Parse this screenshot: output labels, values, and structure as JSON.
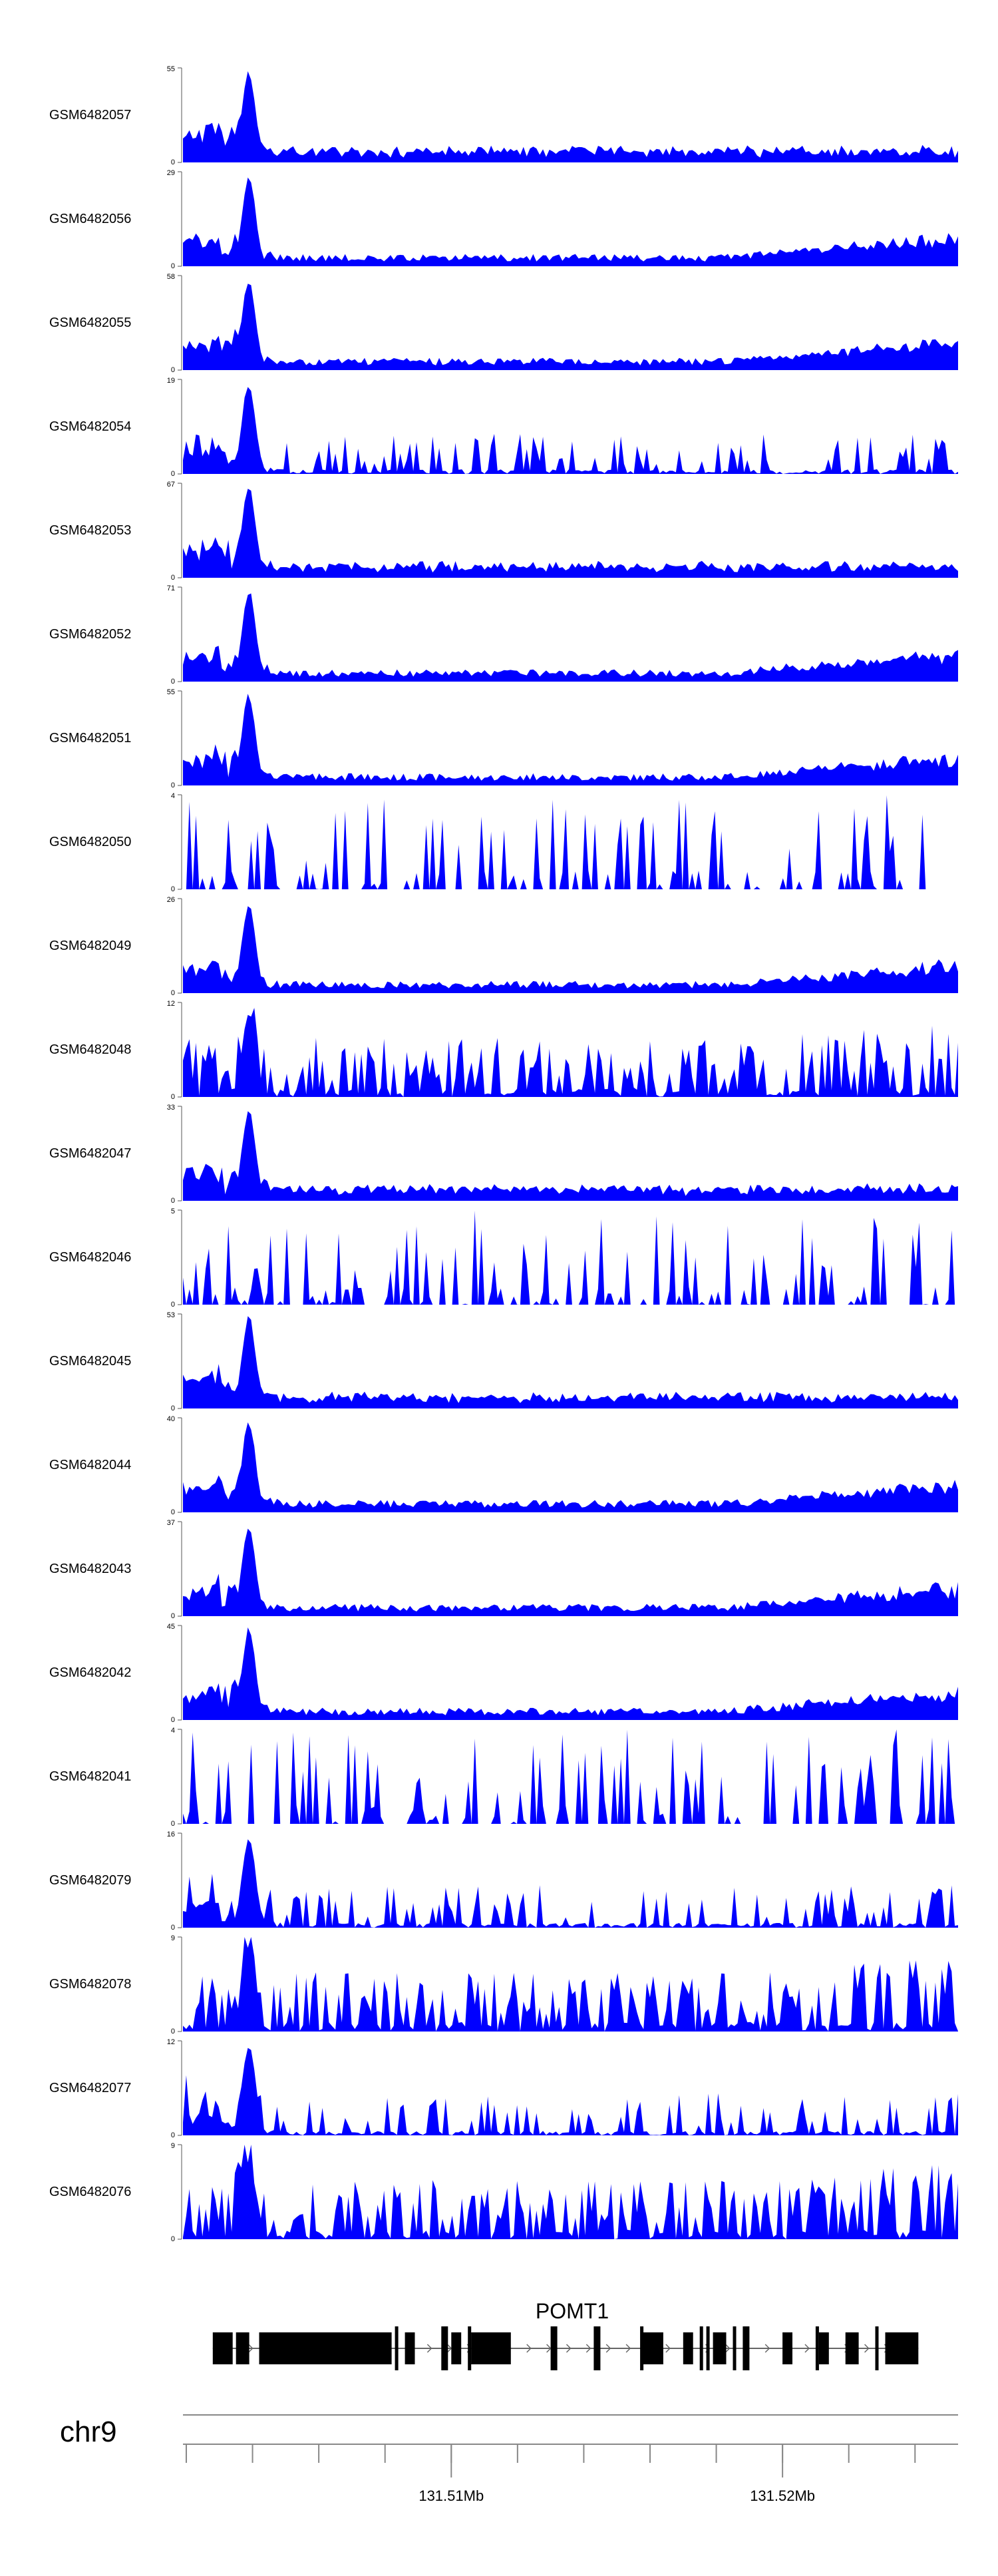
{
  "chart_data": {
    "type": "area",
    "genome": "chr9",
    "xlim": [
      131.5019,
      131.5253
    ],
    "x_unit": "Mb",
    "x_ticks": [
      131.502,
      131.504,
      131.506,
      131.508,
      131.51,
      131.512,
      131.514,
      131.516,
      131.518,
      131.52,
      131.522,
      131.524
    ],
    "x_tick_labels": [
      {
        "value": 131.51,
        "label": "131.51Mb"
      },
      {
        "value": 131.52,
        "label": "131.52Mb"
      }
    ],
    "fill_color": "#0000ff",
    "tracks": [
      {
        "name": "GSM6482057",
        "ymax": 55,
        "ymax_label": "55",
        "ymin_label": "0",
        "type": "peak_flat",
        "seed": 11
      },
      {
        "name": "GSM6482056",
        "ymax": 29,
        "ymax_label": "29",
        "ymin_label": "0",
        "type": "peak_rise",
        "seed": 12
      },
      {
        "name": "GSM6482055",
        "ymax": 58,
        "ymax_label": "58",
        "ymin_label": "0",
        "type": "peak_rise",
        "seed": 13
      },
      {
        "name": "GSM6482054",
        "ymax": 19,
        "ymax_label": "19",
        "ymin_label": "0",
        "type": "peak_spiky",
        "seed": 14
      },
      {
        "name": "GSM6482053",
        "ymax": 67,
        "ymax_label": "67",
        "ymin_label": "0",
        "type": "peak_flat",
        "seed": 15
      },
      {
        "name": "GSM6482052",
        "ymax": 71,
        "ymax_label": "71",
        "ymin_label": "0",
        "type": "peak_rise",
        "seed": 16
      },
      {
        "name": "GSM6482051",
        "ymax": 55,
        "ymax_label": "55",
        "ymin_label": "0",
        "type": "peak_rise",
        "seed": 17
      },
      {
        "name": "GSM6482050",
        "ymax": 4,
        "ymax_label": "4",
        "ymin_label": "0",
        "type": "spiky",
        "seed": 18
      },
      {
        "name": "GSM6482049",
        "ymax": 26,
        "ymax_label": "26",
        "ymin_label": "0",
        "type": "peak_rise",
        "seed": 19
      },
      {
        "name": "GSM6482048",
        "ymax": 12,
        "ymax_label": "12",
        "ymin_label": "0",
        "type": "noisy",
        "seed": 20
      },
      {
        "name": "GSM6482047",
        "ymax": 33,
        "ymax_label": "33",
        "ymin_label": "0",
        "type": "peak_flat",
        "seed": 21
      },
      {
        "name": "GSM6482046",
        "ymax": 5,
        "ymax_label": "5",
        "ymin_label": "0",
        "type": "spiky",
        "seed": 22
      },
      {
        "name": "GSM6482045",
        "ymax": 53,
        "ymax_label": "53",
        "ymin_label": "0",
        "type": "peak_flat",
        "seed": 23
      },
      {
        "name": "GSM6482044",
        "ymax": 40,
        "ymax_label": "40",
        "ymin_label": "0",
        "type": "peak_rise",
        "seed": 24
      },
      {
        "name": "GSM6482043",
        "ymax": 37,
        "ymax_label": "37",
        "ymin_label": "0",
        "type": "peak_rise",
        "seed": 25
      },
      {
        "name": "GSM6482042",
        "ymax": 45,
        "ymax_label": "45",
        "ymin_label": "0",
        "type": "peak_rise",
        "seed": 26
      },
      {
        "name": "GSM6482041",
        "ymax": 4,
        "ymax_label": "4",
        "ymin_label": "0",
        "type": "spiky",
        "seed": 27
      },
      {
        "name": "GSM6482079",
        "ymax": 16,
        "ymax_label": "16",
        "ymin_label": "0",
        "type": "peak_spiky",
        "seed": 28
      },
      {
        "name": "GSM6482078",
        "ymax": 9,
        "ymax_label": "9",
        "ymin_label": "0",
        "type": "noisy",
        "seed": 29
      },
      {
        "name": "GSM6482077",
        "ymax": 12,
        "ymax_label": "12",
        "ymin_label": "0",
        "type": "peak_spiky",
        "seed": 30
      },
      {
        "name": "GSM6482076",
        "ymax": 9,
        "ymax_label": "9",
        "ymin_label": "0",
        "type": "noisy",
        "seed": 31
      }
    ],
    "gene": {
      "name": "POMT1",
      "strand": "+",
      "start": 131.5028,
      "end": 131.5241,
      "exons": [
        [
          131.5028,
          131.5034
        ],
        [
          131.5035,
          131.5039
        ],
        [
          131.5042,
          131.5082
        ],
        [
          131.5083,
          131.5084
        ],
        [
          131.5086,
          131.5089
        ],
        [
          131.5097,
          131.5099
        ],
        [
          131.51,
          131.5103
        ],
        [
          131.5105,
          131.5106
        ],
        [
          131.5106,
          131.5118
        ],
        [
          131.513,
          131.5132
        ],
        [
          131.5143,
          131.5145
        ],
        [
          131.5157,
          131.5158
        ],
        [
          131.5158,
          131.5164
        ],
        [
          131.517,
          131.5173
        ],
        [
          131.5175,
          131.5176
        ],
        [
          131.5177,
          131.5178
        ],
        [
          131.5179,
          131.5183
        ],
        [
          131.5185,
          131.5186
        ],
        [
          131.5188,
          131.519
        ],
        [
          131.52,
          131.5203
        ],
        [
          131.521,
          131.5211
        ],
        [
          131.5211,
          131.5214
        ],
        [
          131.5219,
          131.5223
        ],
        [
          131.5228,
          131.5229
        ],
        [
          131.5231,
          131.5241
        ]
      ]
    }
  }
}
